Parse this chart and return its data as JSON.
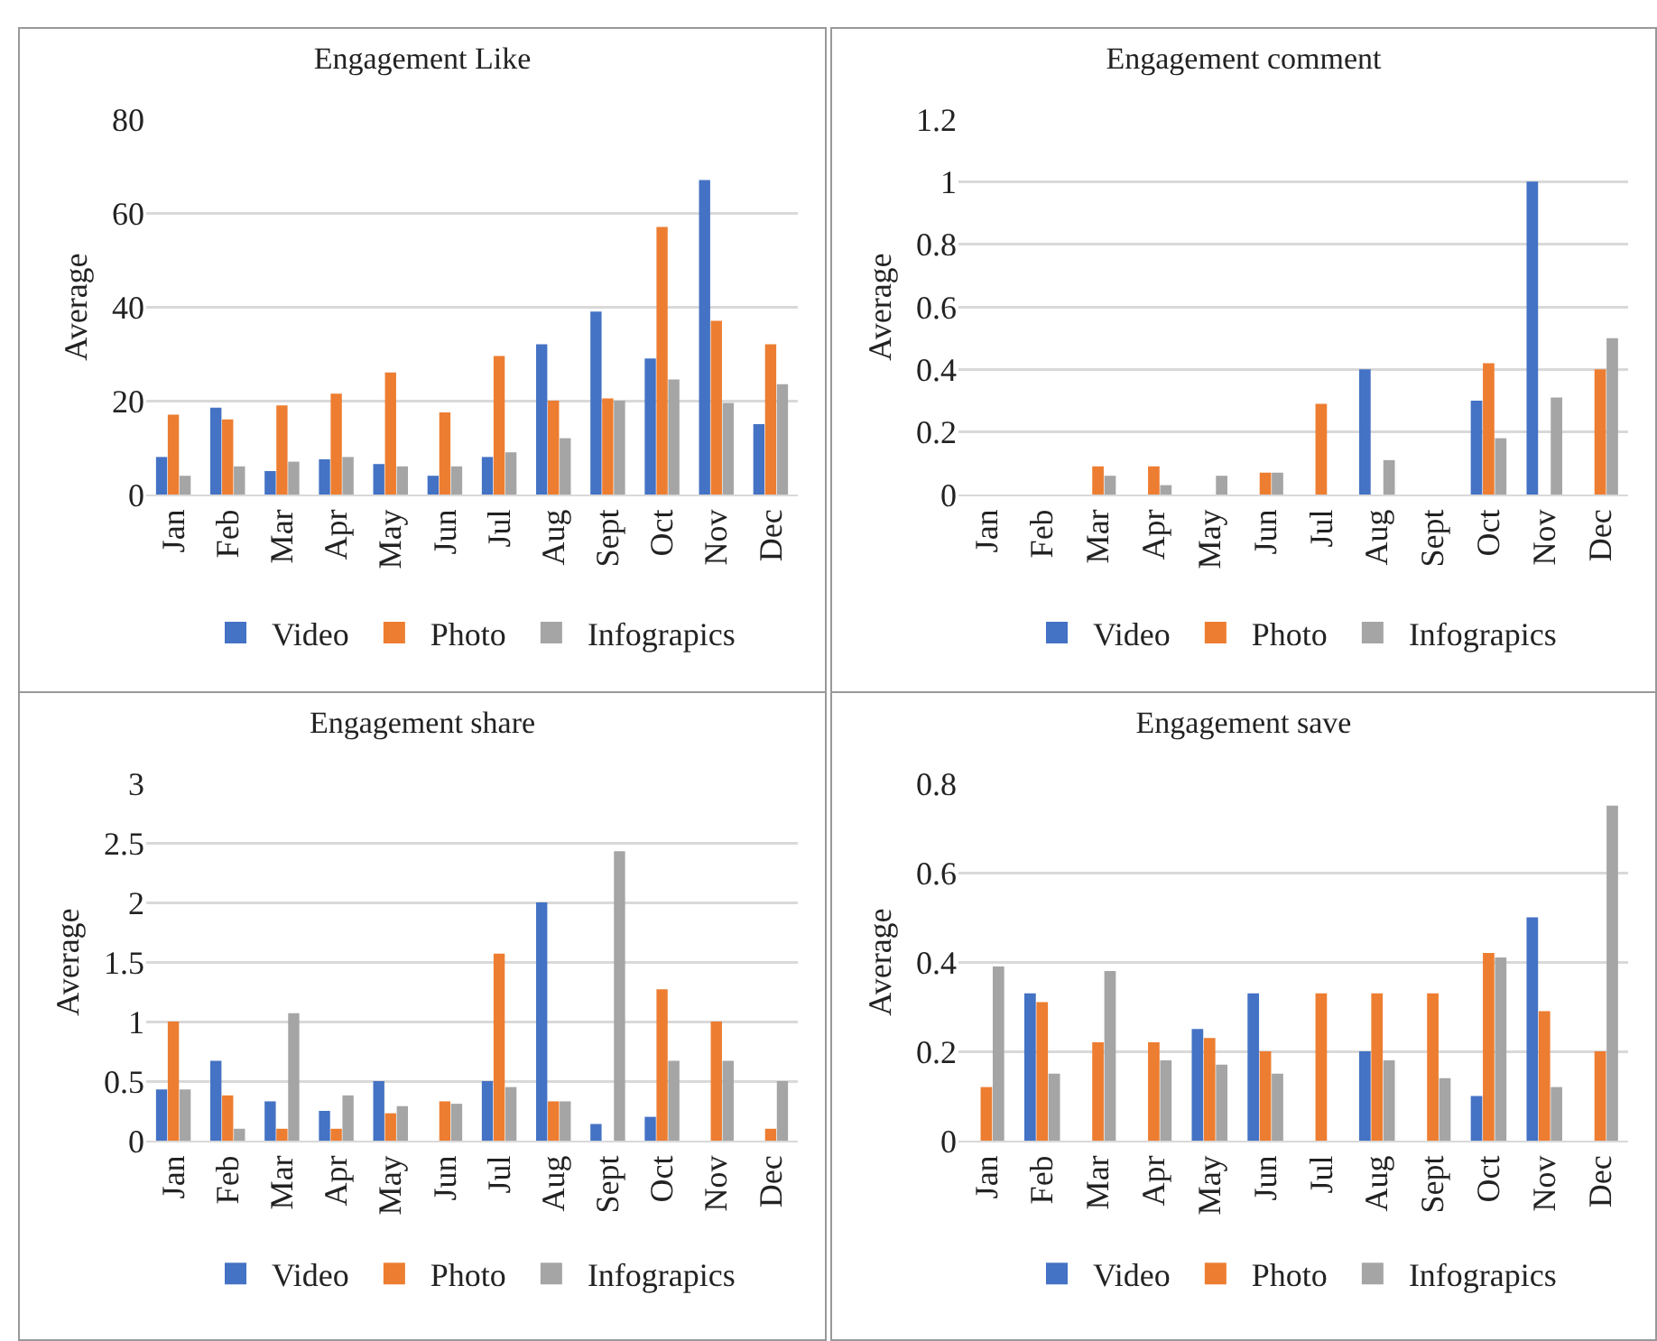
{
  "chart_data": [
    {
      "type": "bar",
      "title": "Engagement Like",
      "ylabel": "Average",
      "categories": [
        "Jan",
        "Feb",
        "Mar",
        "Apr",
        "May",
        "Jun",
        "Jul",
        "Aug",
        "Sept",
        "Oct",
        "Nov",
        "Dec"
      ],
      "ylim": [
        0,
        80
      ],
      "yticks": [
        0,
        20,
        40,
        60,
        80
      ],
      "grid": "y",
      "legend": "bottom",
      "series": [
        {
          "name": "Video",
          "color": "#4472c4",
          "values": [
            8,
            18.5,
            5,
            7.5,
            6.5,
            4,
            8,
            32,
            39,
            29,
            67,
            15
          ]
        },
        {
          "name": "Photo",
          "color": "#ed7d31",
          "values": [
            17,
            16,
            19,
            21.5,
            26,
            17.5,
            29.5,
            20,
            20.5,
            57,
            37,
            32
          ]
        },
        {
          "name": "Infograpics",
          "color": "#a5a5a5",
          "values": [
            4,
            6,
            7,
            8,
            6,
            6,
            9,
            12,
            20,
            24.5,
            19.5,
            23.5
          ]
        }
      ]
    },
    {
      "type": "bar",
      "title": "Engagement comment",
      "ylabel": "Average",
      "categories": [
        "Jan",
        "Feb",
        "Mar",
        "Apr",
        "May",
        "Jun",
        "Jul",
        "Aug",
        "Sept",
        "Oct",
        "Nov",
        "Dec"
      ],
      "ylim": [
        0,
        1.2
      ],
      "yticks": [
        0,
        0.2,
        0.4,
        0.6,
        0.8,
        1,
        1.2
      ],
      "grid": "y",
      "legend": "bottom",
      "series": [
        {
          "name": "Video",
          "color": "#4472c4",
          "values": [
            0,
            0,
            0,
            0,
            0,
            0,
            0,
            0.4,
            0,
            0.3,
            1,
            0
          ]
        },
        {
          "name": "Photo",
          "color": "#ed7d31",
          "values": [
            0,
            0,
            0.09,
            0.09,
            0,
            0.07,
            0.29,
            0,
            0,
            0.42,
            0,
            0.4
          ]
        },
        {
          "name": "Infograpics",
          "color": "#a5a5a5",
          "values": [
            0,
            0,
            0.06,
            0.03,
            0.06,
            0.07,
            0,
            0.11,
            0,
            0.18,
            0.31,
            0.5
          ]
        }
      ]
    },
    {
      "type": "bar",
      "title": "Engagement share",
      "ylabel": "Average",
      "categories": [
        "Jan",
        "Feb",
        "Mar",
        "Apr",
        "May",
        "Jun",
        "Jul",
        "Aug",
        "Sept",
        "Oct",
        "Nov",
        "Dec"
      ],
      "ylim": [
        0,
        3
      ],
      "yticks": [
        0,
        0.5,
        1,
        1.5,
        2,
        2.5,
        3
      ],
      "grid": "y",
      "legend": "bottom",
      "series": [
        {
          "name": "Video",
          "color": "#4472c4",
          "values": [
            0.43,
            0.67,
            0.33,
            0.25,
            0.5,
            0,
            0.5,
            2,
            0.14,
            0.2,
            0,
            0
          ]
        },
        {
          "name": "Photo",
          "color": "#ed7d31",
          "values": [
            1,
            0.38,
            0.1,
            0.1,
            0.23,
            0.33,
            1.57,
            0.33,
            0,
            1.27,
            1,
            0.1
          ]
        },
        {
          "name": "Infograpics",
          "color": "#a5a5a5",
          "values": [
            0.43,
            0.1,
            1.07,
            0.38,
            0.29,
            0.31,
            0.45,
            0.33,
            2.43,
            0.67,
            0.67,
            0.5
          ]
        }
      ]
    },
    {
      "type": "bar",
      "title": "Engagement save",
      "ylabel": "Average",
      "categories": [
        "Jan",
        "Feb",
        "Mar",
        "Apr",
        "May",
        "Jun",
        "Jul",
        "Aug",
        "Sept",
        "Oct",
        "Nov",
        "Dec"
      ],
      "ylim": [
        0,
        0.8
      ],
      "yticks": [
        0,
        0.2,
        0.4,
        0.6,
        0.8
      ],
      "grid": "y",
      "legend": "bottom",
      "series": [
        {
          "name": "Video",
          "color": "#4472c4",
          "values": [
            0,
            0.33,
            0,
            0,
            0.25,
            0.33,
            0,
            0.2,
            0,
            0.1,
            0.5,
            0
          ]
        },
        {
          "name": "Photo",
          "color": "#ed7d31",
          "values": [
            0.12,
            0.31,
            0.22,
            0.22,
            0.23,
            0.2,
            0.33,
            0.33,
            0.33,
            0.42,
            0.29,
            0.2
          ]
        },
        {
          "name": "Infograpics",
          "color": "#a5a5a5",
          "values": [
            0.39,
            0.15,
            0.38,
            0.18,
            0.17,
            0.15,
            0,
            0.18,
            0.14,
            0.41,
            0.12,
            0.75
          ]
        }
      ]
    }
  ]
}
